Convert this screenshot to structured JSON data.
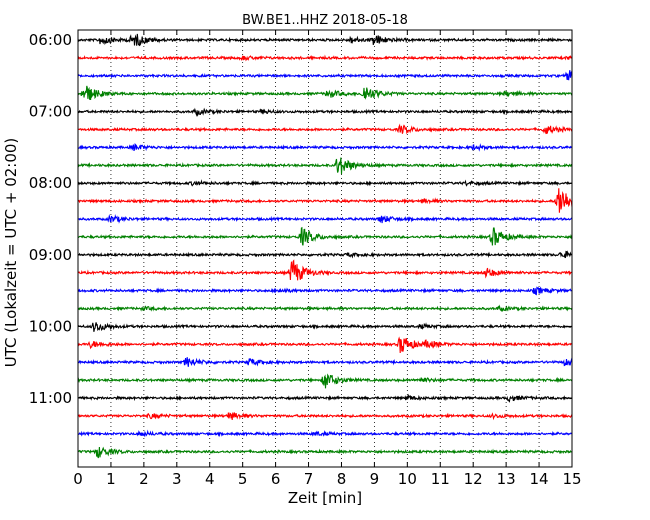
{
  "chart_data": {
    "type": "line",
    "title": "BW.BE1..HHZ 2018-05-18",
    "xlabel": "Zeit  [min]",
    "ylabel": "UTC (Lokalzeit = UTC + 02:00)",
    "xlim": [
      0,
      15
    ],
    "x_ticks": [
      "0",
      "1",
      "2",
      "3",
      "4",
      "5",
      "6",
      "7",
      "8",
      "9",
      "10",
      "11",
      "12",
      "13",
      "14",
      "15"
    ],
    "y_ticks": [
      "06:00",
      "07:00",
      "08:00",
      "09:00",
      "10:00",
      "11:00"
    ],
    "grid": "vertical dotted",
    "trace_interval_min": 15,
    "trace_colors": [
      "#000000",
      "#ff0000",
      "#0000ff",
      "#008000"
    ],
    "traces": [
      {
        "start": "06:00",
        "events": [
          {
            "t": 0.7,
            "amp": 0.45
          },
          {
            "t": 1.6,
            "amp": 0.25
          },
          {
            "t": 1.75,
            "amp": 0.4
          },
          {
            "t": 8.3,
            "amp": 0.25
          },
          {
            "t": 9.0,
            "amp": 0.5
          }
        ]
      },
      {
        "start": "06:15",
        "events": [
          {
            "t": 5.0,
            "amp": 0.15
          },
          {
            "t": 14.9,
            "amp": 0.15
          }
        ]
      },
      {
        "start": "06:30",
        "events": [
          {
            "t": 14.9,
            "amp": 0.5
          }
        ]
      },
      {
        "start": "06:45",
        "events": [
          {
            "t": 0.2,
            "amp": 0.9
          },
          {
            "t": 7.6,
            "amp": 0.35
          },
          {
            "t": 8.7,
            "amp": 0.8
          },
          {
            "t": 13.0,
            "amp": 0.2
          }
        ]
      },
      {
        "start": "07:00",
        "events": [
          {
            "t": 3.6,
            "amp": 0.25
          },
          {
            "t": 5.6,
            "amp": 0.15
          }
        ]
      },
      {
        "start": "07:15",
        "events": [
          {
            "t": 9.8,
            "amp": 0.4
          },
          {
            "t": 14.2,
            "amp": 0.4
          }
        ]
      },
      {
        "start": "07:30",
        "events": [
          {
            "t": 1.7,
            "amp": 0.25
          },
          {
            "t": 12.0,
            "amp": 0.2
          }
        ]
      },
      {
        "start": "07:45",
        "events": [
          {
            "t": 7.9,
            "amp": 1.0
          }
        ]
      },
      {
        "start": "08:00",
        "events": [
          {
            "t": 3.5,
            "amp": 0.15
          },
          {
            "t": 11.8,
            "amp": 0.15
          }
        ]
      },
      {
        "start": "08:15",
        "events": [
          {
            "t": 14.6,
            "amp": 1.6
          },
          {
            "t": 10.5,
            "amp": 0.15
          }
        ]
      },
      {
        "start": "08:30",
        "events": [
          {
            "t": 1.0,
            "amp": 0.3
          },
          {
            "t": 9.2,
            "amp": 0.35
          }
        ]
      },
      {
        "start": "08:45",
        "events": [
          {
            "t": 6.8,
            "amp": 0.85
          },
          {
            "t": 12.6,
            "amp": 0.9
          }
        ]
      },
      {
        "start": "09:00",
        "events": [
          {
            "t": 8.2,
            "amp": 0.15
          },
          {
            "t": 14.7,
            "amp": 0.3
          }
        ]
      },
      {
        "start": "09:15",
        "events": [
          {
            "t": 6.5,
            "amp": 1.3
          },
          {
            "t": 12.4,
            "amp": 0.4
          }
        ]
      },
      {
        "start": "09:30",
        "events": [
          {
            "t": 6.1,
            "amp": 0.15
          },
          {
            "t": 13.9,
            "amp": 0.3
          }
        ]
      },
      {
        "start": "09:45",
        "events": [
          {
            "t": 2.0,
            "amp": 0.1
          },
          {
            "t": 12.8,
            "amp": 0.15
          }
        ]
      },
      {
        "start": "10:00",
        "events": [
          {
            "t": 0.5,
            "amp": 0.5
          },
          {
            "t": 10.4,
            "amp": 0.15
          }
        ]
      },
      {
        "start": "10:15",
        "events": [
          {
            "t": 0.4,
            "amp": 0.3
          },
          {
            "t": 9.8,
            "amp": 0.9
          },
          {
            "t": 10.6,
            "amp": 0.3
          }
        ]
      },
      {
        "start": "10:30",
        "events": [
          {
            "t": 3.3,
            "amp": 0.45
          },
          {
            "t": 5.2,
            "amp": 0.3
          },
          {
            "t": 14.8,
            "amp": 0.3
          }
        ]
      },
      {
        "start": "10:45",
        "events": [
          {
            "t": 7.5,
            "amp": 0.8
          },
          {
            "t": 10.4,
            "amp": 0.2
          }
        ]
      },
      {
        "start": "11:00",
        "events": [
          {
            "t": 10.0,
            "amp": 0.2
          },
          {
            "t": 13.1,
            "amp": 0.25
          }
        ]
      },
      {
        "start": "11:15",
        "events": [
          {
            "t": 4.6,
            "amp": 0.35
          },
          {
            "t": 2.2,
            "amp": 0.2
          },
          {
            "t": 12.6,
            "amp": 0.15
          }
        ]
      },
      {
        "start": "11:30",
        "events": [
          {
            "t": 1.9,
            "amp": 0.2
          },
          {
            "t": 7.2,
            "amp": 0.15
          }
        ]
      },
      {
        "start": "11:45",
        "events": [
          {
            "t": 0.6,
            "amp": 0.55
          }
        ]
      }
    ]
  }
}
